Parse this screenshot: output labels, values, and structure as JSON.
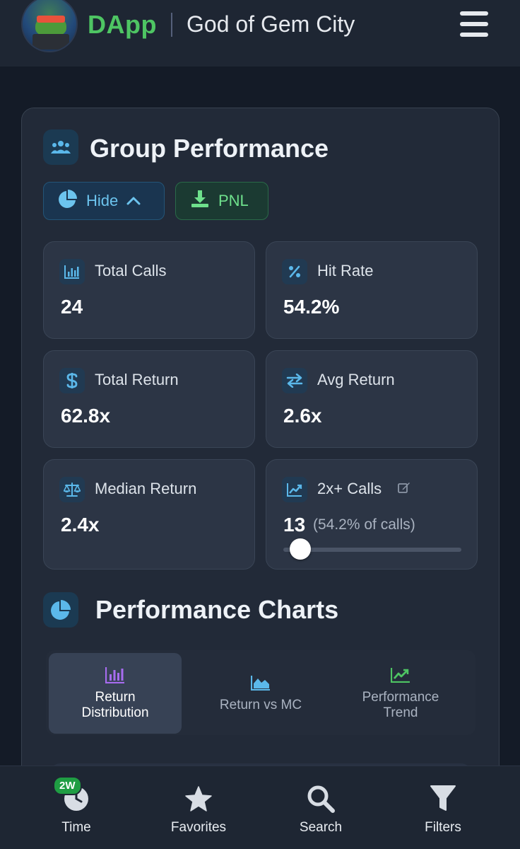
{
  "header": {
    "brand": "DApp",
    "title": "God of Gem City"
  },
  "group": {
    "title": "Group Performance",
    "hide_label": "Hide",
    "pnl_label": "PNL"
  },
  "stats": {
    "total_calls": {
      "label": "Total Calls",
      "value": "24"
    },
    "hit_rate": {
      "label": "Hit Rate",
      "value": "54.2%"
    },
    "total_return": {
      "label": "Total Return",
      "value": "62.8x"
    },
    "avg_return": {
      "label": "Avg Return",
      "value": "2.6x"
    },
    "median_return": {
      "label": "Median Return",
      "value": "2.4x"
    },
    "calls_2x": {
      "label": "2x+ Calls",
      "value": "13",
      "sub": "(54.2% of calls)",
      "slider_fraction": 0.04
    }
  },
  "charts": {
    "title": "Performance Charts",
    "tabs": [
      {
        "line1": "Return",
        "line2": "Distribution"
      },
      {
        "line1": "Return vs MC",
        "line2": ""
      },
      {
        "line1": "Performance",
        "line2": "Trend"
      }
    ]
  },
  "nav": {
    "time": {
      "label": "Time",
      "badge": "2W"
    },
    "favorites": {
      "label": "Favorites"
    },
    "search": {
      "label": "Search"
    },
    "filters": {
      "label": "Filters"
    }
  },
  "colors": {
    "accent_blue": "#6cc4ee",
    "accent_green": "#4ec563",
    "accent_purple": "#a76cf0"
  },
  "icons": {
    "header_menu": "hamburger-icon",
    "group": "users-icon",
    "hide": "pie-chart-icon",
    "pnl": "download-icon"
  }
}
